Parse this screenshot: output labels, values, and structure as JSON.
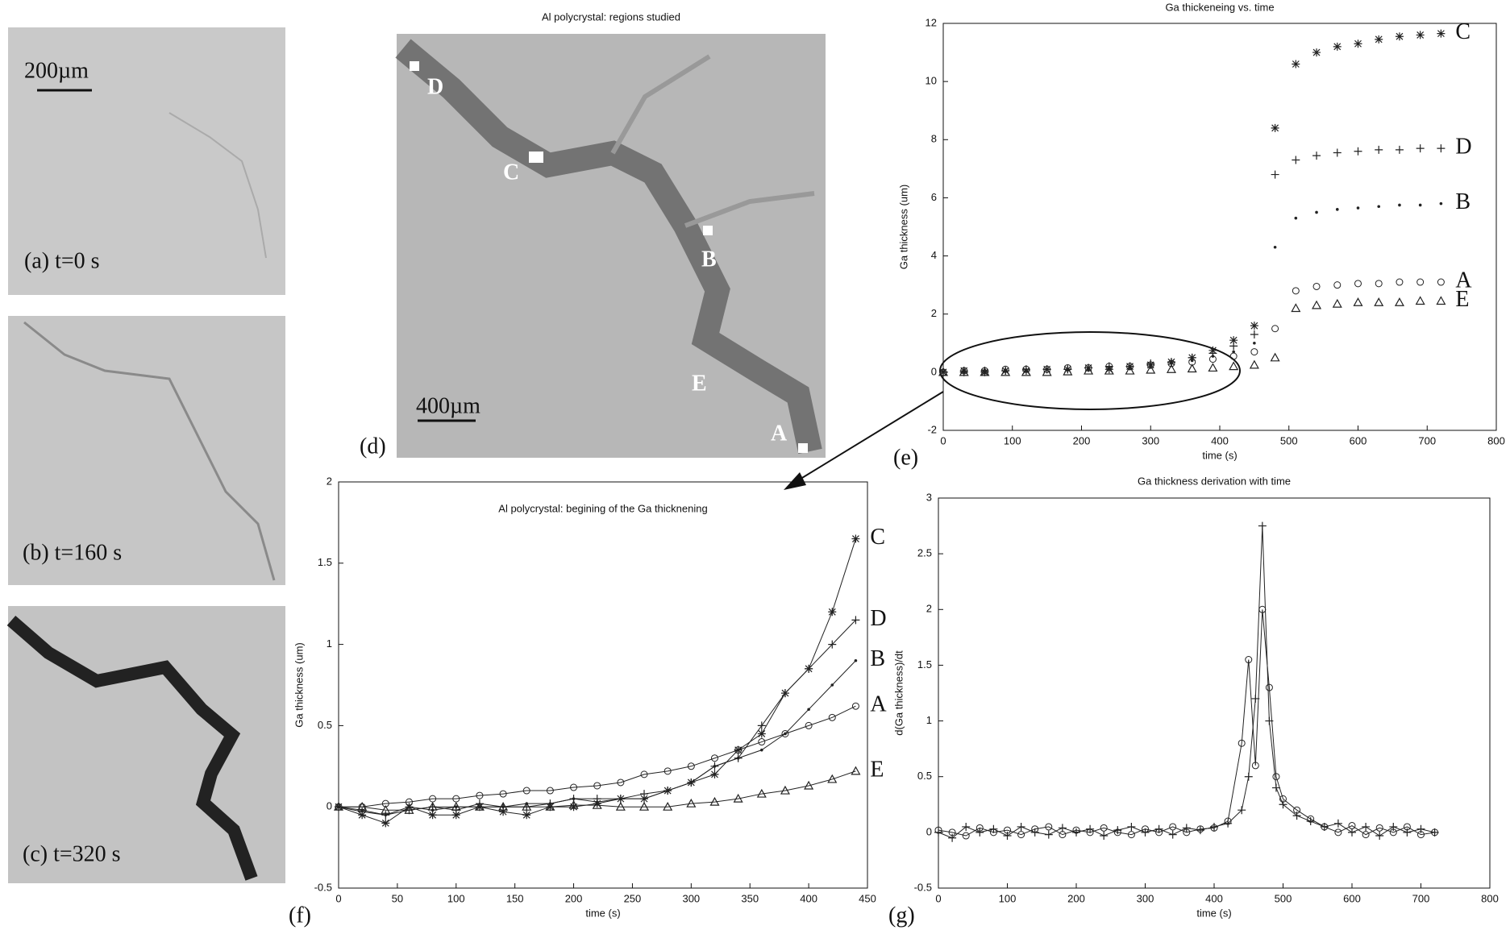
{
  "panels": [
    {
      "label": "(a) t=0 s",
      "scale_bar": "200µm"
    },
    {
      "label": "(b) t=160 s"
    },
    {
      "label": "(c) t=320 s"
    },
    {
      "title": "Al polycrystal: regions studied",
      "label": "(d)",
      "scale_bar": "400µm",
      "regions": [
        "D",
        "C",
        "B",
        "E",
        "A"
      ]
    }
  ],
  "chart_data": [
    {
      "type": "scatter",
      "title": "Ga thickeneing vs. time",
      "x_label": "time (s)",
      "y_label": "Ga thickness (um)",
      "panel_label": "(e)",
      "xlim": [
        0,
        800
      ],
      "xticks": [
        0,
        100,
        200,
        300,
        400,
        500,
        600,
        700,
        800
      ],
      "ylim": [
        -2,
        12
      ],
      "yticks": [
        -2,
        0,
        2,
        4,
        6,
        8,
        10,
        12
      ],
      "line": false,
      "x": [
        0,
        30,
        60,
        90,
        120,
        150,
        180,
        210,
        240,
        270,
        300,
        330,
        360,
        390,
        420,
        450,
        480,
        510,
        540,
        570,
        600,
        630,
        660,
        690,
        720
      ],
      "series": [
        {
          "name": "C",
          "marker": "star",
          "color": "#222",
          "values": [
            0,
            0.05,
            0,
            0.05,
            0.05,
            0.1,
            0.1,
            0.15,
            0.1,
            0.2,
            0.25,
            0.35,
            0.5,
            0.75,
            1.1,
            1.6,
            8.4,
            10.6,
            11.0,
            11.2,
            11.3,
            11.45,
            11.55,
            11.6,
            11.65
          ]
        },
        {
          "name": "D",
          "marker": "plus",
          "color": "#222",
          "values": [
            0,
            0,
            0.05,
            0.05,
            0.1,
            0.1,
            0.1,
            0.15,
            0.2,
            0.2,
            0.3,
            0.35,
            0.5,
            0.65,
            0.9,
            1.3,
            6.8,
            7.3,
            7.45,
            7.55,
            7.6,
            7.65,
            7.65,
            7.7,
            7.7
          ]
        },
        {
          "name": "B",
          "marker": "dot",
          "color": "#222",
          "values": [
            0,
            0,
            0,
            0.05,
            0.05,
            0.1,
            0.1,
            0.1,
            0.15,
            0.2,
            0.25,
            0.3,
            0.4,
            0.55,
            0.7,
            1.0,
            4.3,
            5.3,
            5.5,
            5.6,
            5.65,
            5.7,
            5.75,
            5.75,
            5.8
          ]
        },
        {
          "name": "A",
          "marker": "circle",
          "color": "#222",
          "values": [
            0,
            0.05,
            0.05,
            0.1,
            0.1,
            0.1,
            0.15,
            0.15,
            0.2,
            0.2,
            0.25,
            0.3,
            0.35,
            0.45,
            0.55,
            0.7,
            1.5,
            2.8,
            2.95,
            3.0,
            3.05,
            3.05,
            3.1,
            3.1,
            3.1
          ]
        },
        {
          "name": "E",
          "marker": "triangle",
          "color": "#222",
          "values": [
            0,
            0,
            0,
            0,
            0,
            0,
            0.02,
            0.05,
            0.05,
            0.05,
            0.08,
            0.1,
            0.12,
            0.15,
            0.2,
            0.25,
            0.5,
            2.2,
            2.3,
            2.35,
            2.4,
            2.4,
            2.4,
            2.45,
            2.45
          ]
        }
      ]
    },
    {
      "type": "line",
      "title": "Al polycrystal: begining of the Ga thicknening",
      "x_label": "time (s)",
      "y_label": "Ga thickness (um)",
      "panel_label": "(f)",
      "xlim": [
        0,
        450
      ],
      "xticks": [
        0,
        50,
        100,
        150,
        200,
        250,
        300,
        350,
        400,
        450
      ],
      "ylim": [
        -0.5,
        2
      ],
      "yticks": [
        -0.5,
        0,
        0.5,
        1,
        1.5,
        2
      ],
      "line": true,
      "x": [
        0,
        20,
        40,
        60,
        80,
        100,
        120,
        140,
        160,
        180,
        200,
        220,
        240,
        260,
        280,
        300,
        320,
        340,
        360,
        380,
        400,
        420,
        440
      ],
      "series": [
        {
          "name": "C",
          "marker": "star",
          "color": "#222",
          "values": [
            0,
            -0.05,
            -0.1,
            0,
            -0.05,
            -0.05,
            0,
            -0.03,
            -0.05,
            0,
            0,
            0.02,
            0.05,
            0.05,
            0.1,
            0.15,
            0.2,
            0.35,
            0.45,
            0.7,
            0.85,
            1.2,
            1.65
          ]
        },
        {
          "name": "D",
          "marker": "plus",
          "color": "#222",
          "values": [
            0,
            -0.03,
            -0.05,
            -0.02,
            0,
            -0.02,
            0.02,
            0,
            0,
            0.02,
            0.05,
            0.05,
            0.05,
            0.08,
            0.1,
            0.15,
            0.25,
            0.3,
            0.5,
            0.7,
            0.85,
            1.0,
            1.15
          ]
        },
        {
          "name": "B",
          "marker": "dot",
          "color": "#222",
          "values": [
            0,
            -0.02,
            -0.05,
            0,
            -0.02,
            0,
            0,
            0,
            0.02,
            0.02,
            0.05,
            0.03,
            0.05,
            0.05,
            0.1,
            0.15,
            0.25,
            0.3,
            0.35,
            0.45,
            0.6,
            0.75,
            0.9
          ]
        },
        {
          "name": "A",
          "marker": "circle",
          "color": "#222",
          "values": [
            0,
            0,
            0.02,
            0.03,
            0.05,
            0.05,
            0.07,
            0.08,
            0.1,
            0.1,
            0.12,
            0.13,
            0.15,
            0.2,
            0.22,
            0.25,
            0.3,
            0.35,
            0.4,
            0.45,
            0.5,
            0.55,
            0.62
          ]
        },
        {
          "name": "E",
          "marker": "triangle",
          "color": "#222",
          "values": [
            0,
            0,
            -0.02,
            -0.02,
            0,
            0,
            0,
            0,
            0,
            0,
            0.01,
            0.01,
            0,
            0,
            0,
            0.02,
            0.03,
            0.05,
            0.08,
            0.1,
            0.13,
            0.17,
            0.22
          ]
        }
      ]
    },
    {
      "type": "line",
      "title": "Ga thickness derivation with time",
      "x_label": "time (s)",
      "y_label": "d(Ga thickness)/dt",
      "panel_label": "(g)",
      "xlim": [
        0,
        800
      ],
      "xticks": [
        0,
        100,
        200,
        300,
        400,
        500,
        600,
        700,
        800
      ],
      "ylim": [
        -0.5,
        3
      ],
      "yticks": [
        -0.5,
        0,
        0.5,
        1,
        1.5,
        2,
        2.5,
        3
      ],
      "line": true,
      "x": [
        0,
        20,
        40,
        60,
        80,
        100,
        120,
        140,
        160,
        180,
        200,
        220,
        240,
        260,
        280,
        300,
        320,
        340,
        360,
        380,
        400,
        420,
        440,
        450,
        460,
        470,
        480,
        490,
        500,
        520,
        540,
        560,
        580,
        600,
        620,
        640,
        660,
        680,
        700,
        720
      ],
      "series": [
        {
          "marker": "plus",
          "color": "#222",
          "values": [
            0,
            -0.05,
            0.05,
            0,
            0.03,
            -0.03,
            0.05,
            0,
            -0.02,
            0.04,
            0,
            0.03,
            -0.03,
            0.02,
            0.05,
            0,
            0.03,
            -0.02,
            0.04,
            0.02,
            0.05,
            0.08,
            0.2,
            0.5,
            1.2,
            2.75,
            1.0,
            0.4,
            0.25,
            0.15,
            0.1,
            0.05,
            0.08,
            0,
            0.05,
            -0.03,
            0.05,
            0,
            0.03,
            0
          ]
        },
        {
          "marker": "circle",
          "color": "#222",
          "values": [
            0.02,
            0,
            -0.03,
            0.04,
            0,
            0.02,
            -0.02,
            0.03,
            0.05,
            -0.02,
            0.02,
            0,
            0.04,
            0,
            -0.02,
            0.03,
            0,
            0.05,
            0,
            0.03,
            0.04,
            0.1,
            0.8,
            1.55,
            0.6,
            2.0,
            1.3,
            0.5,
            0.3,
            0.2,
            0.12,
            0.05,
            0,
            0.06,
            -0.02,
            0.04,
            0,
            0.05,
            -0.02,
            0
          ]
        }
      ]
    }
  ]
}
